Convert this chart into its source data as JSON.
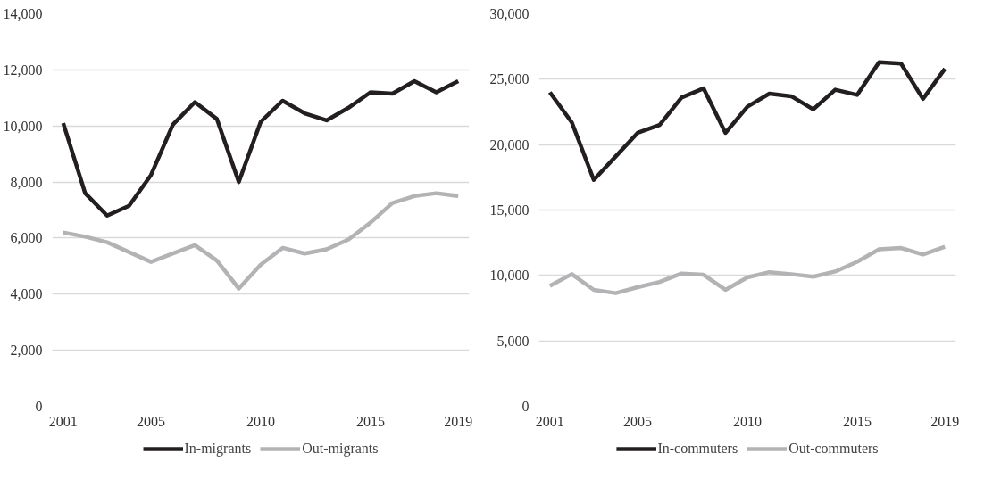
{
  "chart_data": [
    {
      "type": "line",
      "x": [
        2001,
        2002,
        2003,
        2004,
        2005,
        2006,
        2007,
        2008,
        2009,
        2010,
        2011,
        2012,
        2013,
        2014,
        2015,
        2016,
        2017,
        2018,
        2019
      ],
      "xlim": [
        2000.5,
        2019.5
      ],
      "xticks": [
        2001,
        2005,
        2010,
        2015,
        2019
      ],
      "ylim": [
        0,
        14000
      ],
      "yticks": [
        {
          "value": 0,
          "label": "0"
        },
        {
          "value": 2000,
          "label": "2,000"
        },
        {
          "value": 4000,
          "label": "4,000"
        },
        {
          "value": 6000,
          "label": "6,000"
        },
        {
          "value": 8000,
          "label": "8,000"
        },
        {
          "value": 10000,
          "label": "10,000"
        },
        {
          "value": 12000,
          "label": "12,000"
        },
        {
          "value": 14000,
          "label": "14,000"
        }
      ],
      "grid": "y",
      "legend": "bottom",
      "marker": "none",
      "series": [
        {
          "name": "In-migrants",
          "color": "#231f20",
          "values": [
            10100,
            7600,
            6800,
            7150,
            8250,
            10050,
            10850,
            10250,
            8000,
            10150,
            10900,
            10450,
            10200,
            10650,
            11200,
            11150,
            11600,
            11200,
            11600
          ]
        },
        {
          "name": "Out-migrants",
          "color": "#b3b3b5",
          "values": [
            6200,
            6050,
            5850,
            5500,
            5150,
            5450,
            5750,
            5200,
            4200,
            5050,
            5650,
            5450,
            5600,
            5950,
            6550,
            7250,
            7500,
            7600,
            7500
          ]
        }
      ]
    },
    {
      "type": "line",
      "x": [
        2001,
        2002,
        2003,
        2004,
        2005,
        2006,
        2007,
        2008,
        2009,
        2010,
        2011,
        2012,
        2013,
        2014,
        2015,
        2016,
        2017,
        2018,
        2019
      ],
      "xlim": [
        2000.5,
        2019.5
      ],
      "xticks": [
        2001,
        2005,
        2010,
        2015,
        2019
      ],
      "ylim": [
        0,
        30000
      ],
      "yticks": [
        {
          "value": 0,
          "label": "0"
        },
        {
          "value": 5000,
          "label": "5,000"
        },
        {
          "value": 10000,
          "label": "10,000"
        },
        {
          "value": 15000,
          "label": "15,000"
        },
        {
          "value": 20000,
          "label": "20,000"
        },
        {
          "value": 25000,
          "label": "25,000"
        },
        {
          "value": 30000,
          "label": "30,000"
        }
      ],
      "grid": "y",
      "legend": "bottom",
      "marker": "none",
      "series": [
        {
          "name": "In-commuters",
          "color": "#231f20",
          "values": [
            24000,
            21700,
            17300,
            19100,
            20900,
            21500,
            23600,
            24300,
            20900,
            22900,
            23900,
            23700,
            22700,
            24200,
            23800,
            26300,
            26200,
            23500,
            25800
          ]
        },
        {
          "name": "Out-commuters",
          "color": "#b3b3b5",
          "values": [
            9200,
            10100,
            8900,
            8650,
            9100,
            9500,
            10150,
            10050,
            8900,
            9850,
            10250,
            10100,
            9900,
            10300,
            11050,
            12000,
            12100,
            11600,
            12200
          ]
        }
      ]
    }
  ]
}
